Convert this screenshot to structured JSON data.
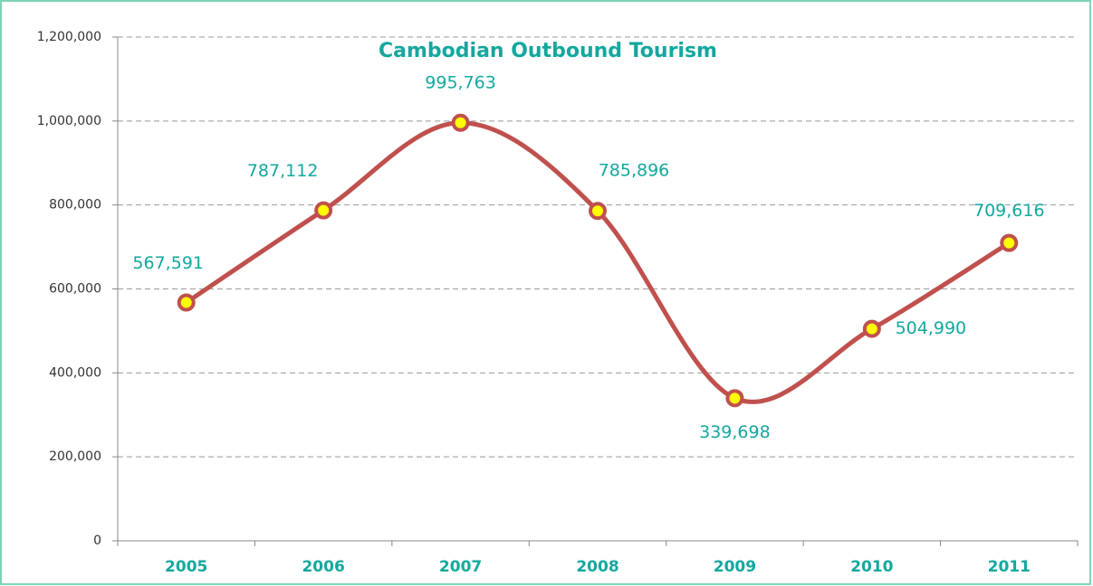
{
  "chart_data": {
    "type": "line",
    "title": "Cambodian Outbound Tourism",
    "categories": [
      "2005",
      "2006",
      "2007",
      "2008",
      "2009",
      "2010",
      "2011"
    ],
    "series": [
      {
        "name": "Cambodian Outbound Tourism",
        "color": "#c0504d",
        "values": [
          567591,
          787112,
          995763,
          785896,
          339698,
          504990,
          709616
        ],
        "value_labels": [
          "567,591",
          "787,112",
          "995,763",
          "785,896",
          "339,698",
          "504,990",
          "709,616"
        ]
      }
    ],
    "ylim": [
      0,
      1200000
    ],
    "yticks": [
      0,
      {
        "value": 200000,
        "label": "200,000"
      },
      {
        "value": 400000,
        "label": "400,000"
      },
      {
        "value": 600000,
        "label": "600,000"
      },
      {
        "value": 800000,
        "label": "800,000"
      },
      {
        "value": 1000000,
        "label": "1,000,000"
      },
      {
        "value": 1200000,
        "label": "1,200,000"
      }
    ],
    "grid": true,
    "smooth": true,
    "marker_fill": "#ffff00",
    "label_color": "#13a89e"
  }
}
